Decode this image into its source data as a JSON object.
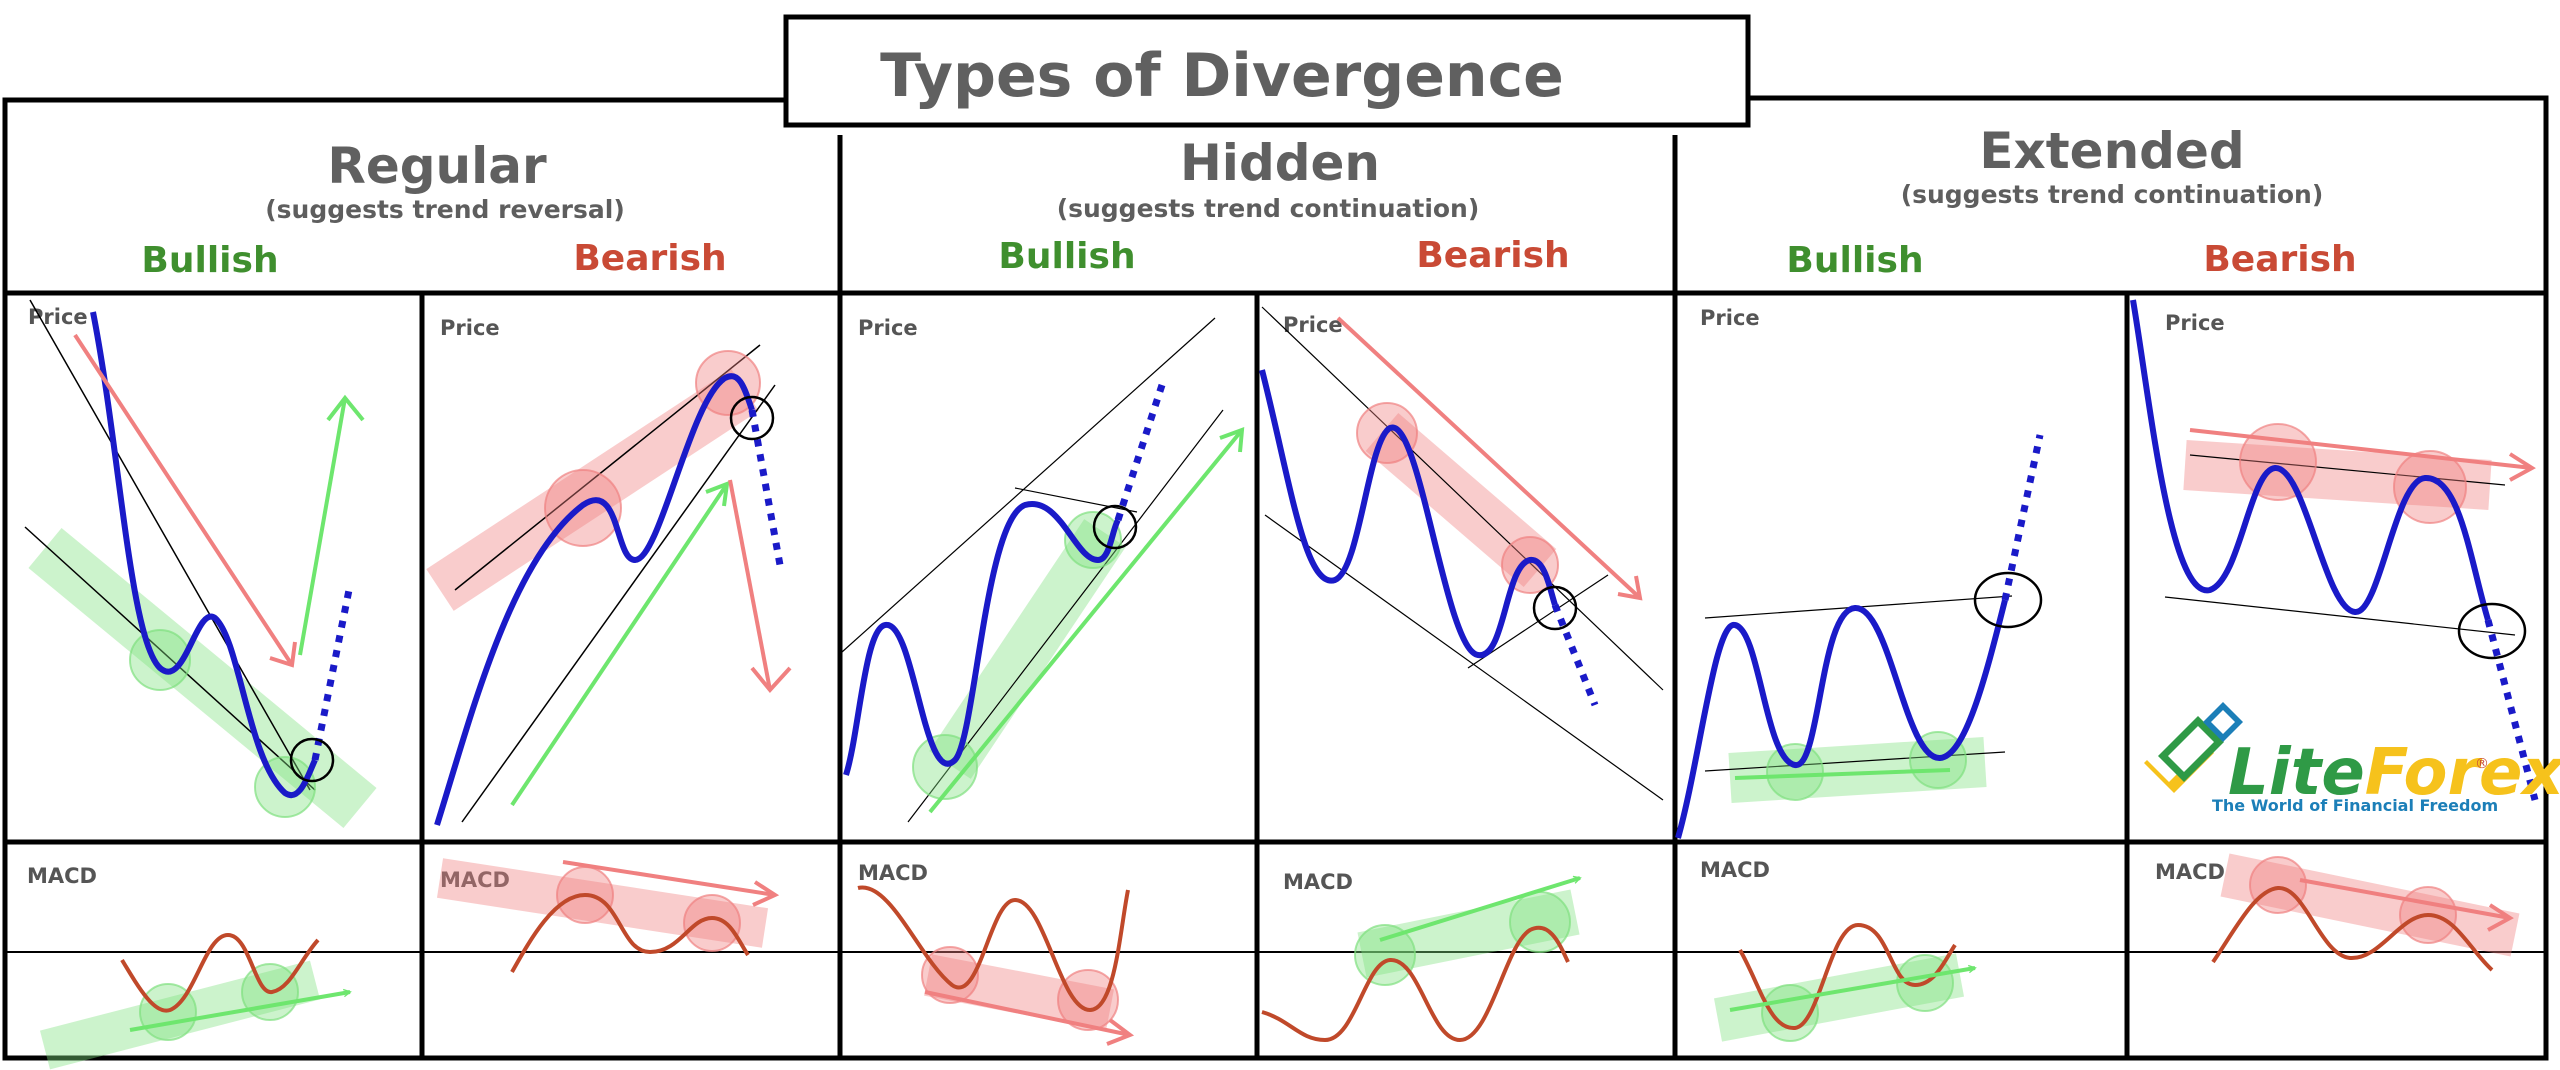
{
  "title": "Types of Divergence",
  "groups": [
    {
      "name": "Regular",
      "note": "(suggests trend reversal)",
      "bullish": "Bullish",
      "bearish": "Bearish"
    },
    {
      "name": "Hidden",
      "note": "(suggests trend continuation)",
      "bullish": "Bullish",
      "bearish": "Bearish"
    },
    {
      "name": "Extended",
      "note": "(suggests trend continuation)",
      "bullish": "Bullish",
      "bearish": "Bearish"
    }
  ],
  "labels": {
    "price": "Price",
    "macd": "MACD"
  },
  "logo": {
    "brand_lite": "Lite",
    "brand_forex": "Forex",
    "registered": "®",
    "tagline": "The World of Financial Freedom"
  },
  "colors": {
    "price_line": "#1a1ac8",
    "macd_line": "#c0492a",
    "bullish_highlight": "#7fe07f",
    "bearish_highlight": "#f08080",
    "bullish_text": "#3f8f2e",
    "bearish_text": "#c94a35",
    "heading_text": "#606060"
  }
}
